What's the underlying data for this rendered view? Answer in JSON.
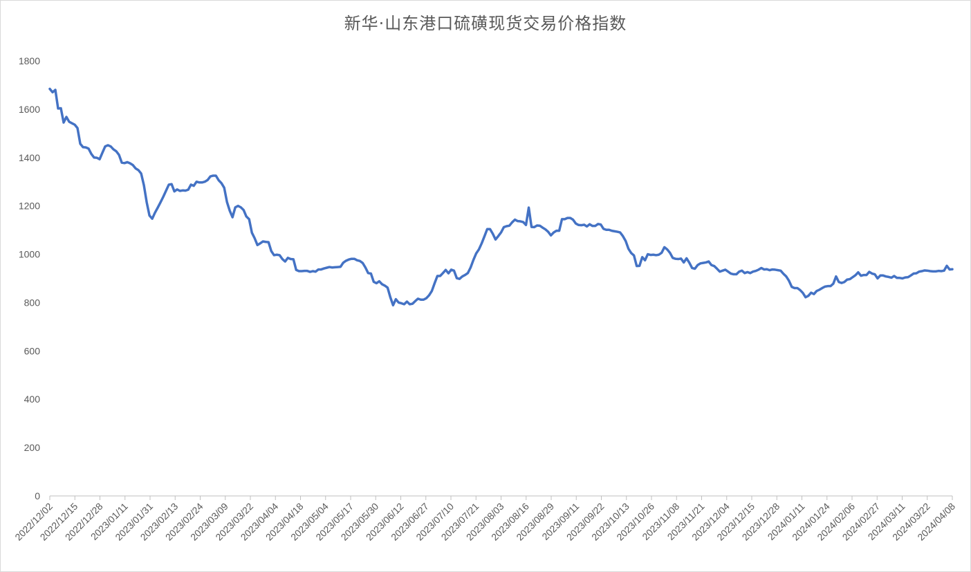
{
  "chart_data": {
    "type": "line",
    "title": "新华·山东港口硫磺现货交易价格指数",
    "xlabel": "",
    "ylabel": "",
    "ylim": [
      0,
      1800
    ],
    "y_ticks": [
      "0",
      "200",
      "400",
      "600",
      "800",
      "1000",
      "1200",
      "1400",
      "1600",
      "1800"
    ],
    "x_tick_labels": [
      "2022/12/02",
      "2022/12/15",
      "2022/12/28",
      "2023/01/11",
      "2023/01/31",
      "2023/02/13",
      "2023/02/24",
      "2023/03/09",
      "2023/03/22",
      "2023/04/04",
      "2023/04/18",
      "2023/05/04",
      "2023/05/17",
      "2023/05/30",
      "2023/06/12",
      "2023/06/27",
      "2023/07/10",
      "2023/07/21",
      "2023/08/03",
      "2023/08/16",
      "2023/08/29",
      "2023/09/11",
      "2023/09/22",
      "2023/10/13",
      "2023/10/26",
      "2023/11/08",
      "2023/11/21",
      "2023/12/04",
      "2023/12/15",
      "2023/12/28",
      "2024/01/11",
      "2024/01/24",
      "2024/02/06",
      "2024/02/27",
      "2024/03/11",
      "2024/03/22",
      "2024/04/08"
    ],
    "grid": false,
    "legend": "none",
    "line_color": "#4472c4",
    "series": [
      {
        "values": [
          1684,
          1670,
          1680,
          1603,
          1604,
          1545,
          1568,
          1548,
          1542,
          1536,
          1522,
          1457,
          1443,
          1442,
          1437,
          1415,
          1400,
          1399,
          1393,
          1420,
          1446,
          1451,
          1446,
          1434,
          1426,
          1411,
          1379,
          1377,
          1381,
          1376,
          1369,
          1355,
          1348,
          1334,
          1285,
          1215,
          1160,
          1147,
          1172,
          1193,
          1215,
          1238,
          1263,
          1288,
          1290,
          1260,
          1268,
          1262,
          1264,
          1263,
          1267,
          1288,
          1283,
          1300,
          1297,
          1297,
          1300,
          1307,
          1322,
          1325,
          1325,
          1306,
          1294,
          1275,
          1216,
          1180,
          1153,
          1194,
          1200,
          1194,
          1183,
          1156,
          1145,
          1089,
          1066,
          1038,
          1045,
          1053,
          1051,
          1050,
          1013,
          996,
          998,
          996,
          980,
          970,
          985,
          980,
          979,
          935,
          930,
          930,
          931,
          931,
          927,
          930,
          928,
          937,
          937,
          941,
          944,
          947,
          945,
          946,
          947,
          948,
          965,
          973,
          978,
          981,
          981,
          975,
          972,
          964,
          945,
          922,
          920,
          886,
          880,
          888,
          876,
          870,
          862,
          822,
          789,
          814,
          800,
          797,
          793,
          804,
          793,
          795,
          806,
          816,
          812,
          812,
          818,
          830,
          848,
          880,
          910,
          910,
          922,
          935,
          921,
          936,
          932,
          901,
          898,
          908,
          914,
          922,
          945,
          976,
          1003,
          1020,
          1045,
          1074,
          1104,
          1104,
          1085,
          1061,
          1075,
          1090,
          1112,
          1116,
          1118,
          1132,
          1143,
          1137,
          1136,
          1133,
          1121,
          1193,
          1113,
          1112,
          1119,
          1118,
          1110,
          1103,
          1093,
          1078,
          1090,
          1097,
          1097,
          1145,
          1145,
          1150,
          1150,
          1143,
          1127,
          1121,
          1120,
          1122,
          1115,
          1124,
          1117,
          1117,
          1125,
          1123,
          1105,
          1101,
          1101,
          1097,
          1095,
          1093,
          1090,
          1075,
          1055,
          1023,
          1005,
          995,
          951,
          952,
          988,
          975,
          1000,
          997,
          998,
          996,
          998,
          1006,
          1029,
          1020,
          1006,
          985,
          981,
          980,
          982,
          966,
          983,
          965,
          943,
          940,
          955,
          962,
          964,
          966,
          970,
          955,
          951,
          940,
          928,
          932,
          936,
          928,
          920,
          917,
          917,
          928,
          932,
          922,
          926,
          922,
          928,
          931,
          936,
          943,
          937,
          938,
          934,
          937,
          936,
          934,
          932,
          919,
          908,
          890,
          865,
          860,
          860,
          852,
          840,
          822,
          828,
          841,
          835,
          848,
          853,
          860,
          866,
          868,
          868,
          878,
          908,
          885,
          881,
          885,
          895,
          897,
          905,
          913,
          925,
          911,
          914,
          914,
          927,
          920,
          917,
          900,
          912,
          912,
          908,
          906,
          903,
          910,
          902,
          902,
          900,
          904,
          905,
          912,
          920,
          921,
          928,
          930,
          933,
          932,
          930,
          929,
          929,
          931,
          930,
          932,
          952,
          937,
          938
        ]
      }
    ]
  }
}
